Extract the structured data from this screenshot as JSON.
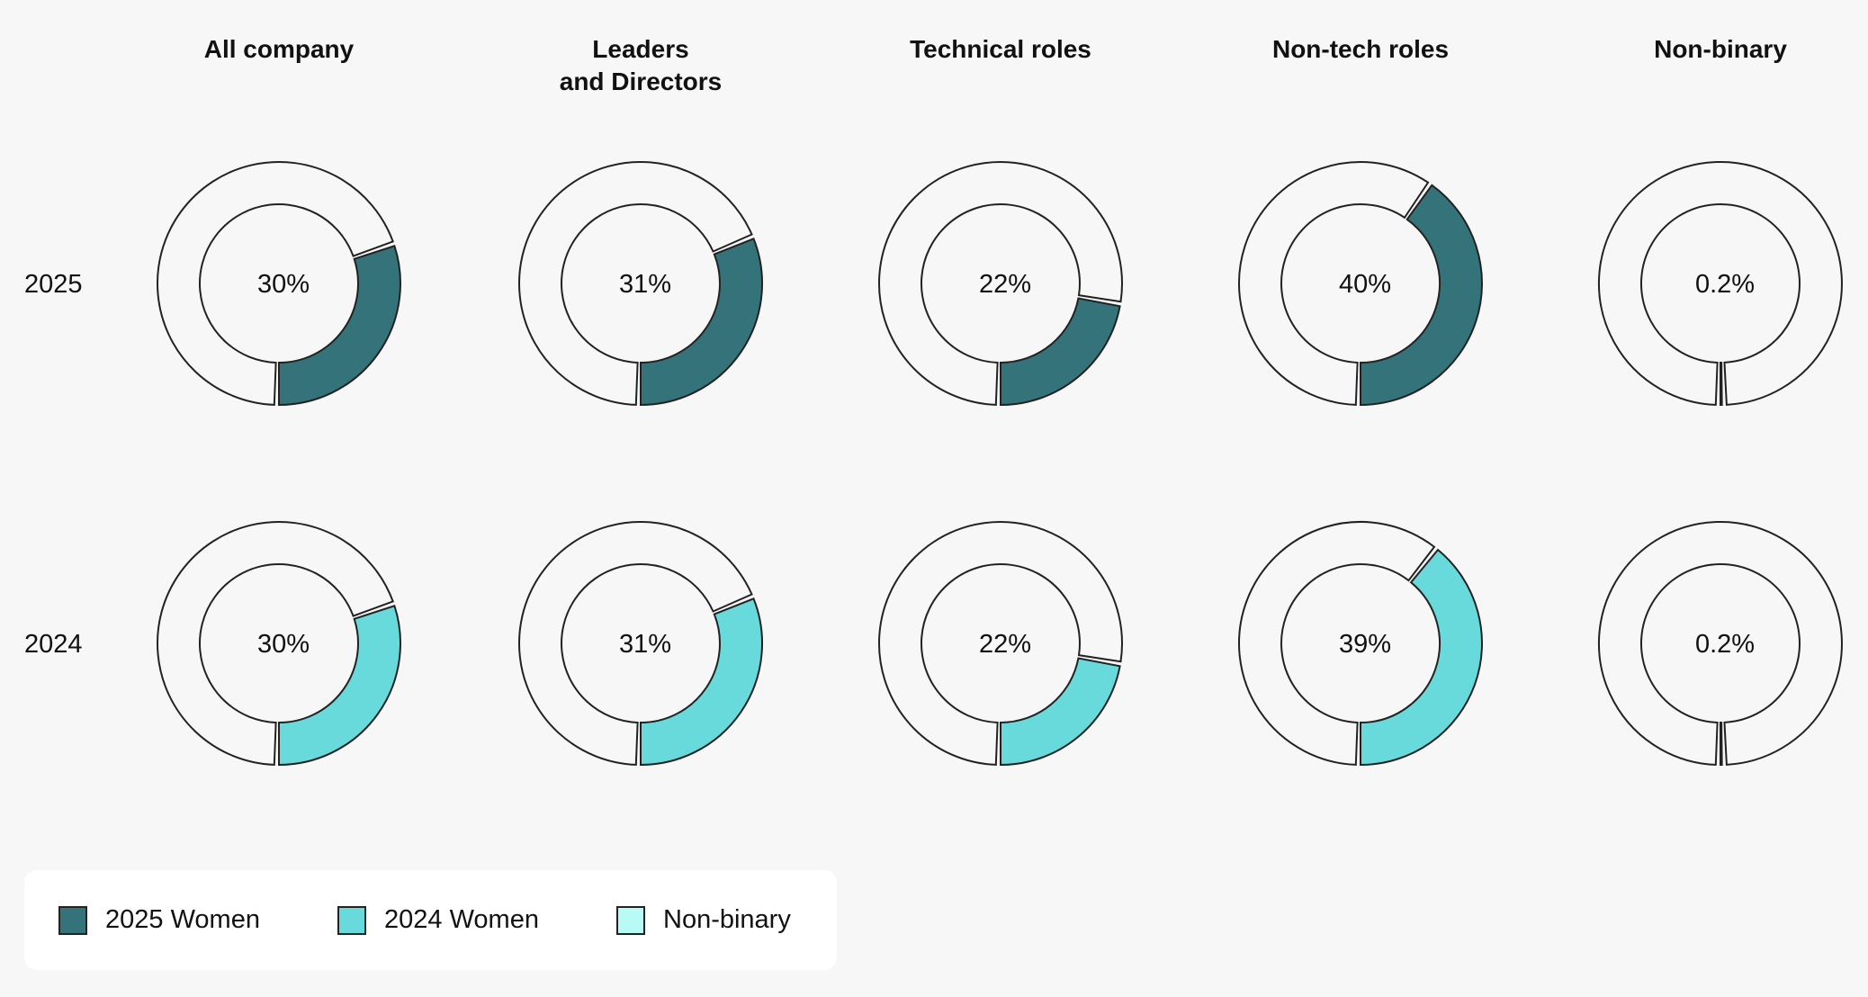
{
  "colors": {
    "women_2025": "#34737a",
    "women_2024": "#69dadb",
    "nonbinary": "#b8fbf6",
    "remainder": "#f7f7f7",
    "stroke": "#222222"
  },
  "chart_data": {
    "type": "donut",
    "columns": [
      {
        "title": [
          "All company"
        ]
      },
      {
        "title": [
          "Leaders",
          "and Directors"
        ]
      },
      {
        "title": [
          "Technical roles"
        ]
      },
      {
        "title": [
          "Non-tech roles"
        ]
      },
      {
        "title": [
          "Non-binary"
        ]
      }
    ],
    "rows": [
      {
        "year": "2025",
        "series": "2025 Women",
        "values": [
          30,
          31,
          22,
          40,
          0.2
        ],
        "labels": [
          "30%",
          "31%",
          "22%",
          "40%",
          "0.2%"
        ],
        "color_keys": [
          "women_2025",
          "women_2025",
          "women_2025",
          "women_2025",
          "nonbinary"
        ]
      },
      {
        "year": "2024",
        "series": "2024 Women",
        "values": [
          30,
          31,
          22,
          39,
          0.2
        ],
        "labels": [
          "30%",
          "31%",
          "22%",
          "39%",
          "0.2%"
        ],
        "color_keys": [
          "women_2024",
          "women_2024",
          "women_2024",
          "women_2024",
          "nonbinary"
        ]
      }
    ],
    "legend": [
      {
        "label": "2025 Women",
        "color_key": "women_2025"
      },
      {
        "label": "2024 Women",
        "color_key": "women_2024"
      },
      {
        "label": "Non-binary",
        "color_key": "nonbinary"
      }
    ],
    "legend_position": "bottom-left"
  }
}
